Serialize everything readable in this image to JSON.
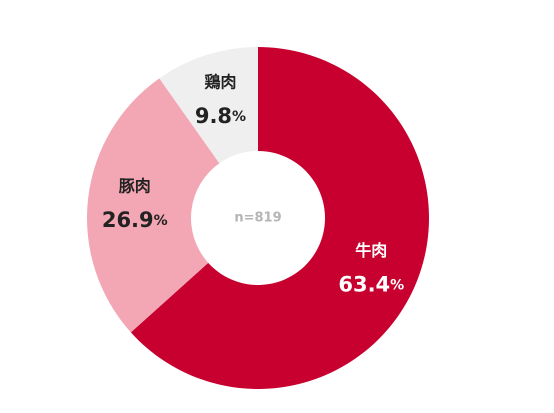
{
  "chart_data": {
    "type": "pie",
    "categories": [
      "牛肉",
      "豚肉",
      "鶏肉"
    ],
    "values": [
      63.4,
      26.9,
      9.8
    ],
    "unit": "%",
    "colors": [
      "#c8002f",
      "#f3a6b3",
      "#efefef"
    ],
    "label_colors": [
      "#ffffff",
      "#222222",
      "#222222"
    ],
    "center_label": "n=819"
  }
}
